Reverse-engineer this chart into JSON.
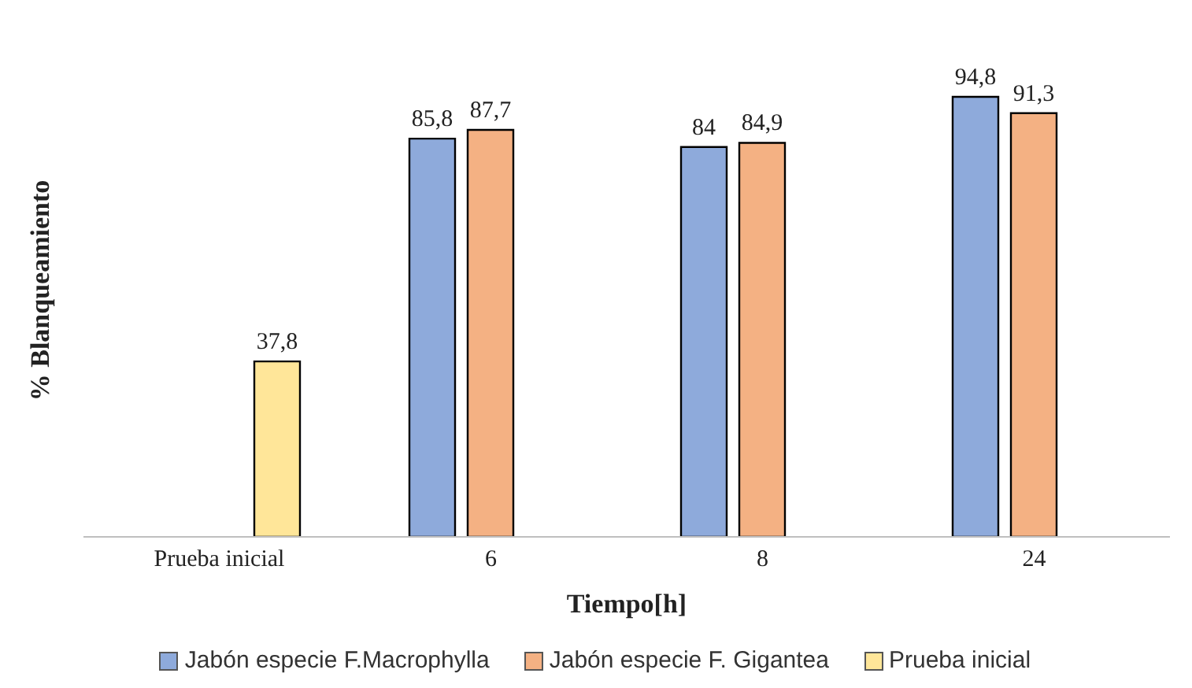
{
  "chart_data": {
    "type": "bar",
    "xlabel": "Tiempo[h]",
    "ylabel": "% Blanqueamiento",
    "categories": [
      "Prueba inicial",
      "6",
      "8",
      "24"
    ],
    "series": [
      {
        "name": "Jabón especie F.Macrophylla",
        "color": "#8eaadb",
        "values": [
          null,
          85.8,
          84,
          94.8
        ],
        "value_labels": [
          null,
          "85,8",
          "84",
          "94,8"
        ]
      },
      {
        "name": "Jabón especie F. Gigantea",
        "color": "#f4b183",
        "values": [
          null,
          87.7,
          84.9,
          91.3
        ],
        "value_labels": [
          null,
          "87,7",
          "84,9",
          "91,3"
        ]
      },
      {
        "name": "Prueba inicial",
        "color": "#ffe699",
        "values": [
          37.8,
          null,
          null,
          null
        ],
        "value_labels": [
          "37,8",
          null,
          null,
          null
        ]
      }
    ],
    "legend": "bottom",
    "grid": false,
    "tick_labels": "x"
  }
}
